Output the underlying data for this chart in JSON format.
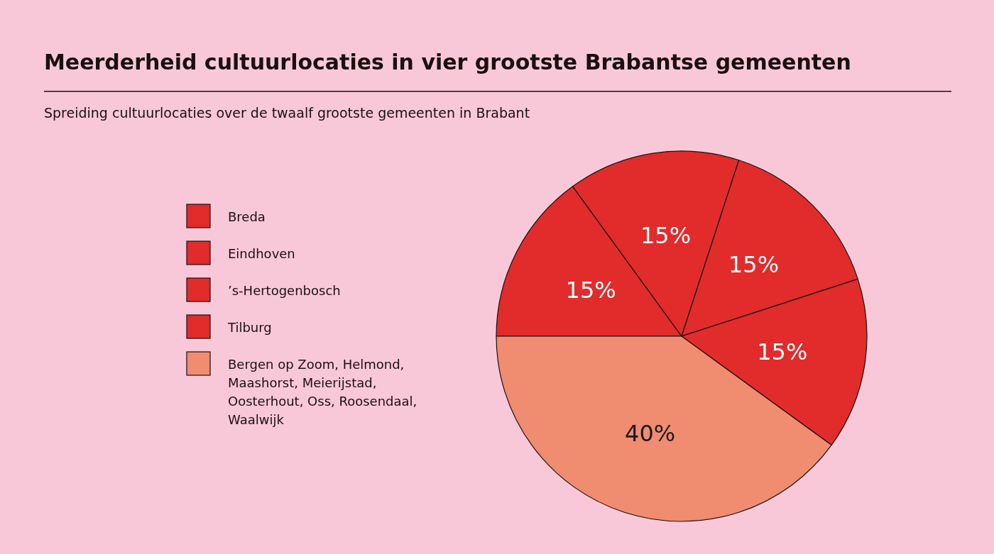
{
  "chart_data": {
    "type": "pie",
    "title": "Meerderheid cultuurlocaties in vier grootste Brabantse gemeenten",
    "subtitle": "Spreiding cultuurlocaties over de twaalf grootste gemeenten in Brabant",
    "categories": [
      "Breda",
      "Eindhoven",
      "’s-Hertogenbosch",
      "Tilburg",
      "Bergen op Zoom, Helmond, Maashorst, Meierijstad, Oosterhout, Oss, Roosendaal, Waalwijk"
    ],
    "values": [
      15,
      15,
      15,
      15,
      40
    ],
    "colors": [
      "#e22b2b",
      "#e22b2b",
      "#e22b2b",
      "#e22b2b",
      "#f08c70"
    ],
    "value_labels": [
      "15%",
      "15%",
      "15%",
      "15%",
      "40%"
    ],
    "legend": "left"
  }
}
